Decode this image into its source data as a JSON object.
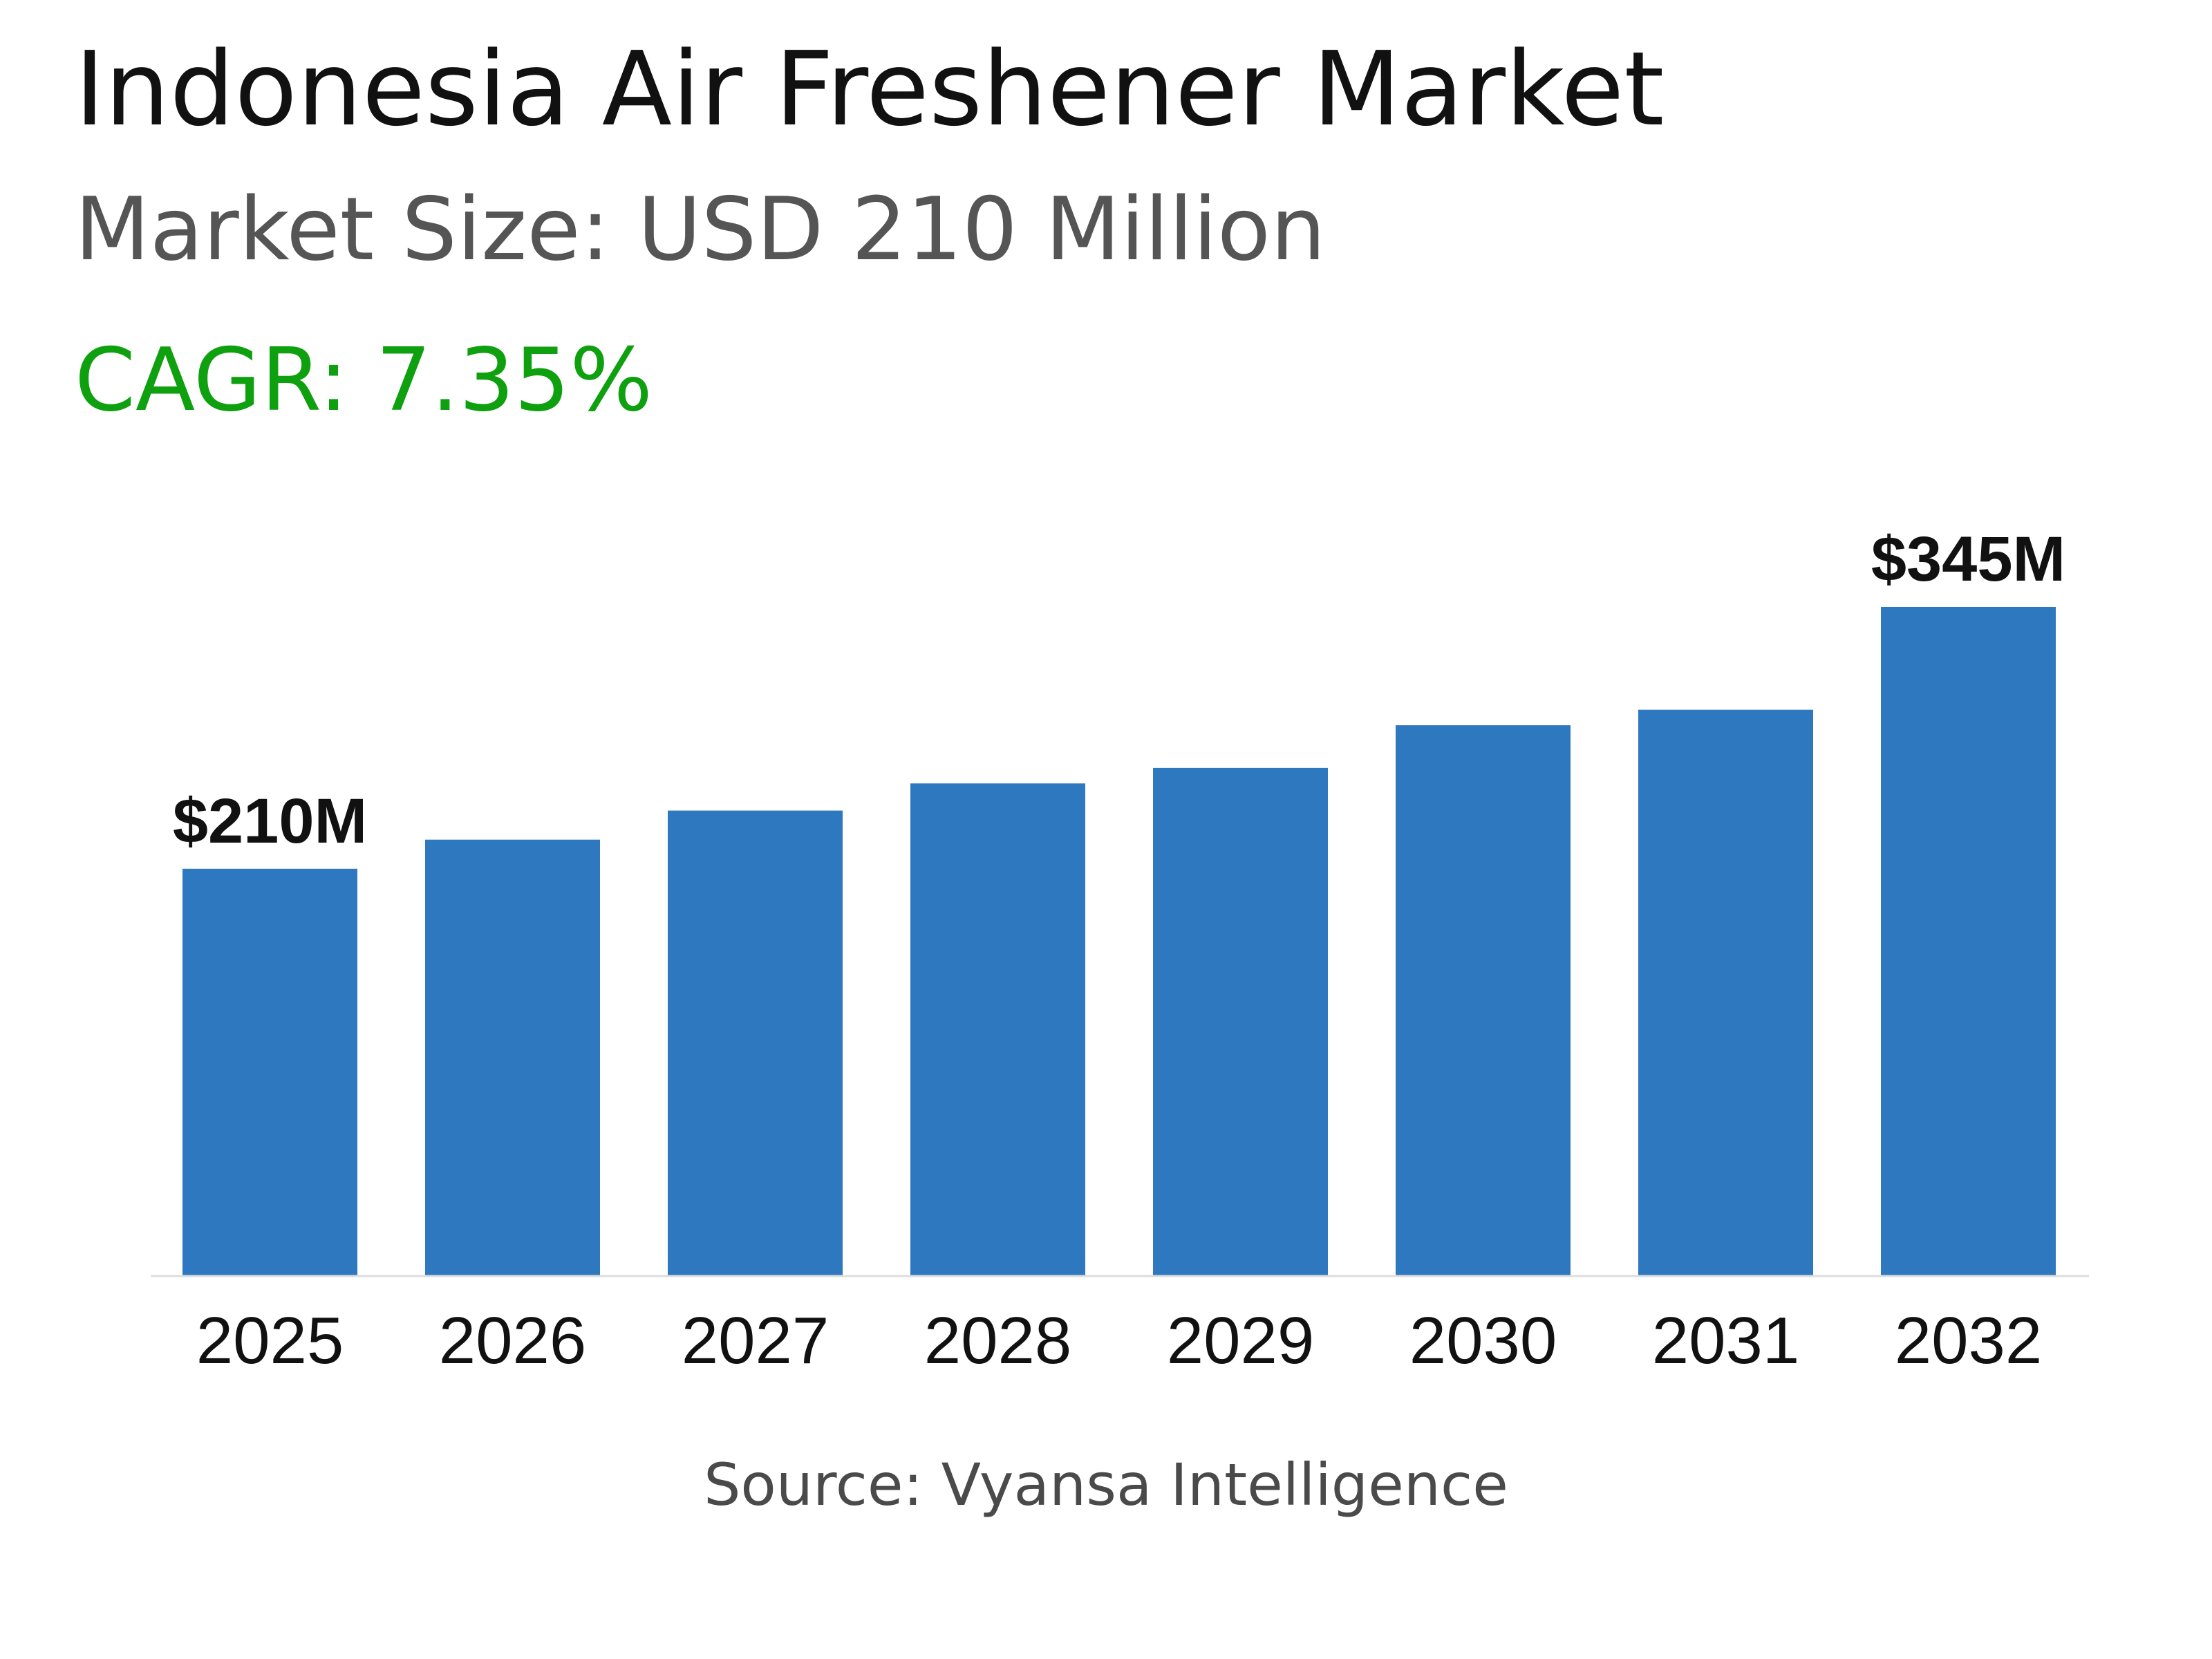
{
  "header": {
    "title": "Indonesia Air Freshener Market",
    "subtitle": "Market Size: USD 210 Million",
    "cagr": "CAGR: 7.35%"
  },
  "footer": {
    "source": "Source: Vyansa Intelligence"
  },
  "colors": {
    "bar": "#2e78c0",
    "cagr": "#0ea00e",
    "axis": "#dddddd"
  },
  "chart_data": {
    "type": "bar",
    "categories": [
      "2025",
      "2026",
      "2027",
      "2028",
      "2029",
      "2030",
      "2031",
      "2032"
    ],
    "values": [
      210,
      225,
      240,
      254,
      262,
      284,
      292,
      345
    ],
    "data_labels": [
      {
        "index": 0,
        "text": "$210M"
      },
      {
        "index": 7,
        "text": "$345M"
      }
    ],
    "title": "Indonesia Air Freshener Market",
    "xlabel": "",
    "ylabel": "",
    "ylim": [
      0,
      345
    ],
    "grid": false,
    "legend": "none"
  }
}
